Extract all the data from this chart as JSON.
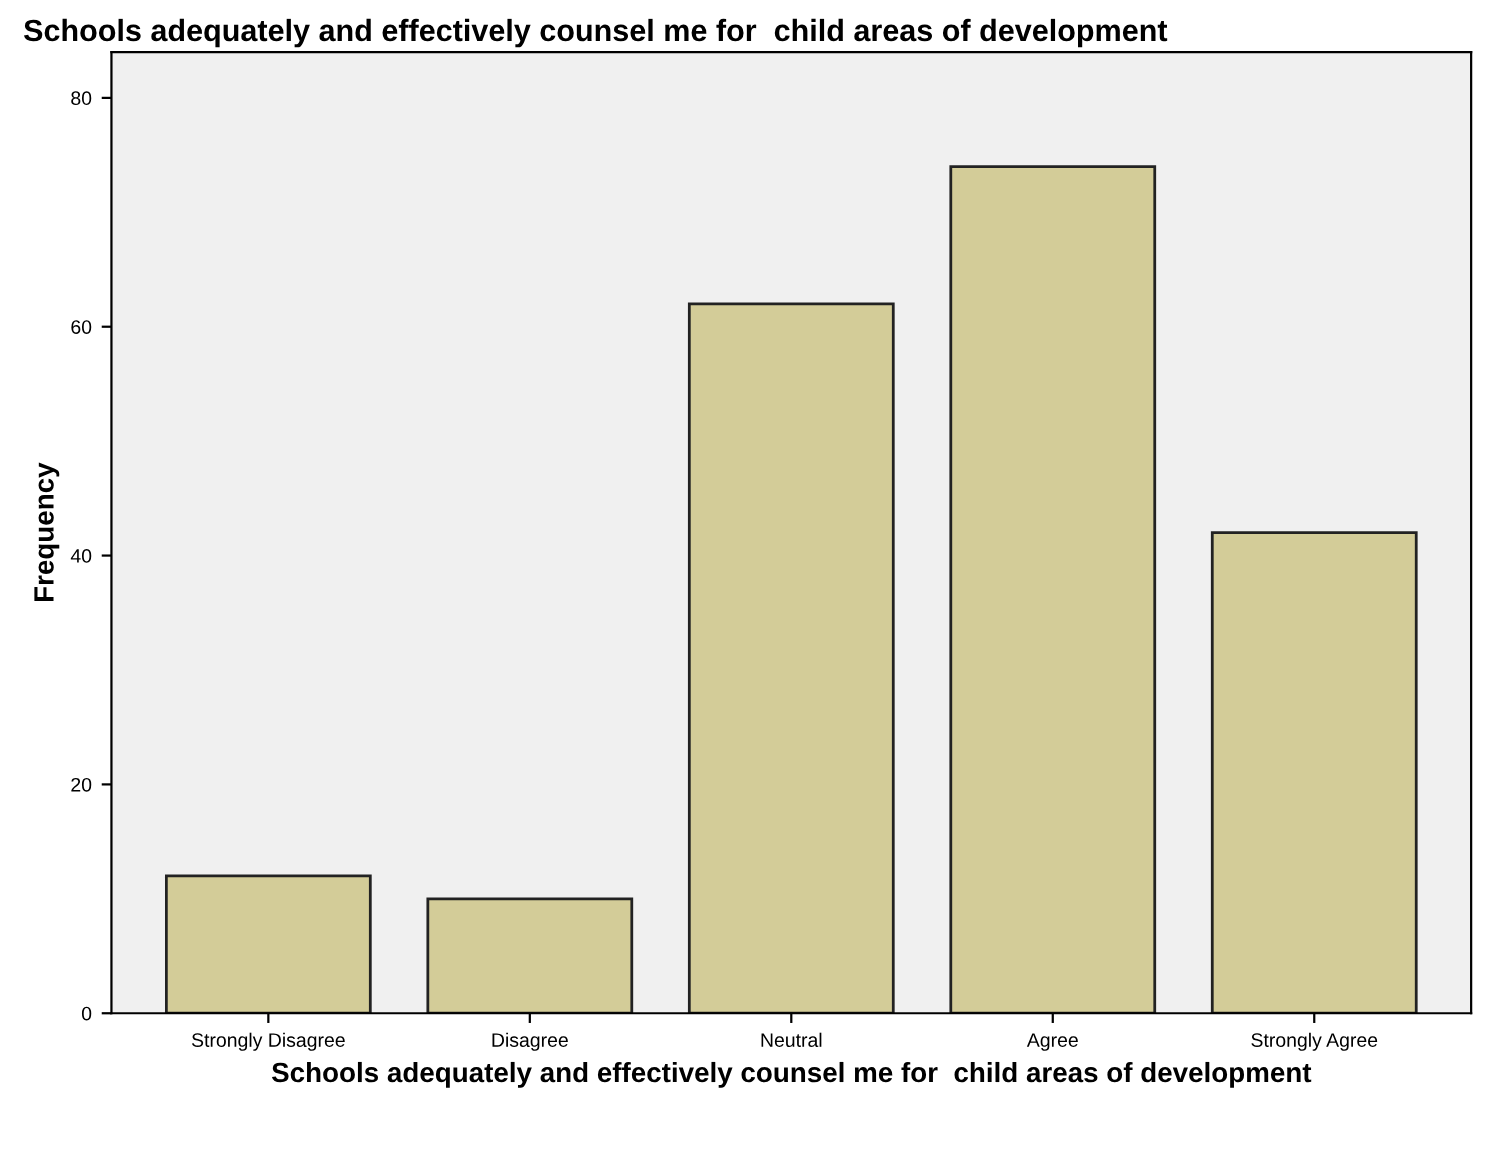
{
  "chart_data": {
    "type": "bar",
    "title": "Schools adequately and effectively counsel me for  child areas of development",
    "xlabel": "Schools adequately and effectively counsel me for  child areas of development",
    "ylabel": "Frequency",
    "categories": [
      "Strongly Disagree",
      "Disagree",
      "Neutral",
      "Agree",
      "Strongly Agree"
    ],
    "values": [
      12,
      10,
      62,
      74,
      42
    ],
    "color": "#d3cc98",
    "ylim": [
      0,
      84
    ],
    "yticks": [
      0,
      20,
      40,
      60,
      80
    ],
    "grid": false
  }
}
